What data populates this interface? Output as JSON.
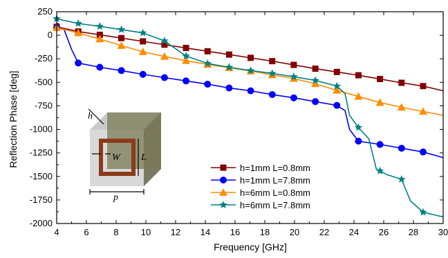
{
  "chart_data": {
    "type": "line",
    "xlabel": "Frequency [GHz]",
    "ylabel": "Reflection Phase [deg]",
    "xlim": [
      4,
      30
    ],
    "ylim": [
      -2000,
      250
    ],
    "xticks": [
      "4",
      "6",
      "8",
      "10",
      "12",
      "14",
      "16",
      "18",
      "20",
      "22",
      "24",
      "26",
      "28",
      "30"
    ],
    "yticks": [
      "250",
      "0",
      "-250",
      "-500",
      "-750",
      "-1000",
      "-1250",
      "-1500",
      "-1750",
      "-2000"
    ],
    "grid": false,
    "legend_position": "bottom-center",
    "series": [
      {
        "name": "h=1mm L=0.8mm",
        "color": "#800000",
        "marker": "square",
        "x": [
          4,
          5.45,
          6.9,
          8.35,
          9.8,
          11.25,
          12.7,
          14.15,
          15.6,
          17.05,
          18.5,
          19.95,
          21.4,
          22.85,
          24.3,
          25.75,
          27.2,
          28.65,
          30
        ],
        "y": [
          90,
          40,
          5,
          -30,
          -65,
          -100,
          -135,
          -170,
          -205,
          -240,
          -275,
          -315,
          -355,
          -390,
          -425,
          -465,
          -505,
          -540,
          -590
        ]
      },
      {
        "name": "h=1mm L=7.8mm",
        "color": "#0000ff",
        "marker": "circle",
        "x": [
          4,
          4.5,
          5,
          5.45,
          6.9,
          8.35,
          9.8,
          11.25,
          12.7,
          14.15,
          15.6,
          17.05,
          18.5,
          19.95,
          21.4,
          22.85,
          23.4,
          23.7,
          24.3,
          25.75,
          27.2,
          28.65,
          30
        ],
        "y": [
          80,
          60,
          -150,
          -295,
          -340,
          -375,
          -415,
          -450,
          -485,
          -520,
          -560,
          -590,
          -630,
          -665,
          -705,
          -745,
          -800,
          -1000,
          -1125,
          -1160,
          -1200,
          -1240,
          -1300
        ]
      },
      {
        "name": "h=6mm L=0.8mm",
        "color": "#ff8c00",
        "marker": "triangle",
        "x": [
          4,
          5.45,
          6.9,
          8.35,
          9.8,
          11.25,
          12.7,
          14.15,
          15.6,
          17.05,
          18.5,
          19.95,
          21.4,
          22.85,
          24.3,
          25.75,
          27.2,
          28.65,
          30
        ],
        "y": [
          80,
          25,
          -40,
          -110,
          -175,
          -225,
          -270,
          -310,
          -345,
          -380,
          -420,
          -460,
          -515,
          -585,
          -650,
          -715,
          -765,
          -810,
          -850
        ]
      },
      {
        "name": "h=6mm L=7.8mm",
        "color": "#008080",
        "marker": "star",
        "x": [
          4,
          5.45,
          6.9,
          8.35,
          9.8,
          11.25,
          12.7,
          14.15,
          15.6,
          17.05,
          18.5,
          19.95,
          21.4,
          22.85,
          23.4,
          23.7,
          24.3,
          25.0,
          25.5,
          26.2,
          27.2,
          27.8,
          28.65,
          30
        ],
        "y": [
          175,
          125,
          95,
          60,
          25,
          -60,
          -220,
          -300,
          -340,
          -375,
          -405,
          -440,
          -480,
          -540,
          -620,
          -850,
          -980,
          -1100,
          -1420,
          -1480,
          -1530,
          -1760,
          -1880,
          -1930
        ]
      }
    ],
    "inset_labels": {
      "h": "h",
      "w": "W",
      "l": "L",
      "p": "p"
    }
  }
}
